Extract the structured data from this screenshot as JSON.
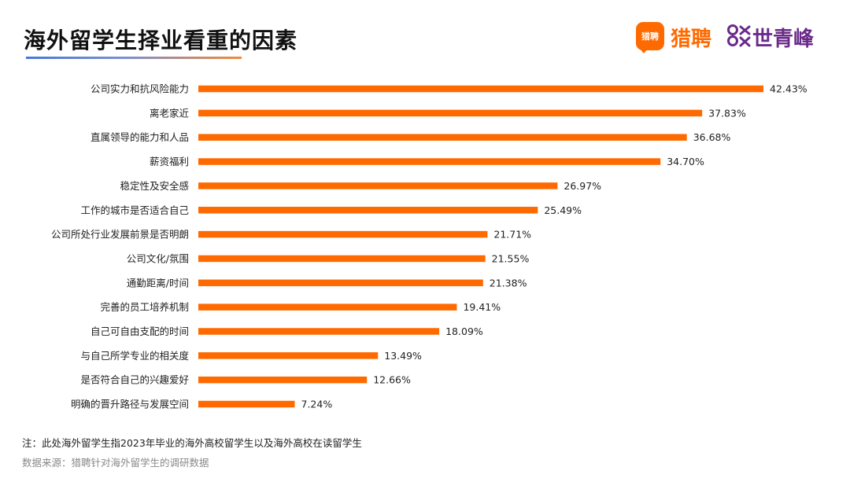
{
  "header": {
    "title": "海外留学生择业看重的因素",
    "logo_badge_text": "猎聘",
    "logo_liepin": "猎聘",
    "logo_sqf": "世青峰"
  },
  "colors": {
    "bar": "#ff6a00",
    "badge": "#ff6a00",
    "sqf": "#6a2a8a"
  },
  "chart_data": {
    "type": "bar",
    "orientation": "horizontal",
    "categories": [
      "公司实力和抗风险能力",
      "离老家近",
      "直属领导的能力和人品",
      "薪资福利",
      "稳定性及安全感",
      "工作的城市是否适合自己",
      "公司所处行业发展前景是否明朗",
      "公司文化/氛围",
      "通勤距离/时间",
      "完善的员工培养机制",
      "自己可自由支配的时间",
      "与自己所学专业的相关度",
      "是否符合自己的兴趣爱好",
      "明确的晋升路径与发展空间"
    ],
    "values": [
      42.43,
      37.83,
      36.68,
      34.7,
      26.97,
      25.49,
      21.71,
      21.55,
      21.38,
      19.41,
      18.09,
      13.49,
      12.66,
      7.24
    ],
    "value_labels": [
      "42.43%",
      "37.83%",
      "36.68%",
      "34.70%",
      "26.97%",
      "25.49%",
      "21.71%",
      "21.55%",
      "21.38%",
      "19.41%",
      "18.09%",
      "13.49%",
      "12.66%",
      "7.24%"
    ],
    "xlim": [
      0,
      42.43
    ],
    "grid": false,
    "legend": "none"
  },
  "footer": {
    "note": "注：此处海外留学生指2023年毕业的海外高校留学生以及海外高校在读留学生",
    "source": "数据来源：猎聘针对海外留学生的调研数据"
  }
}
